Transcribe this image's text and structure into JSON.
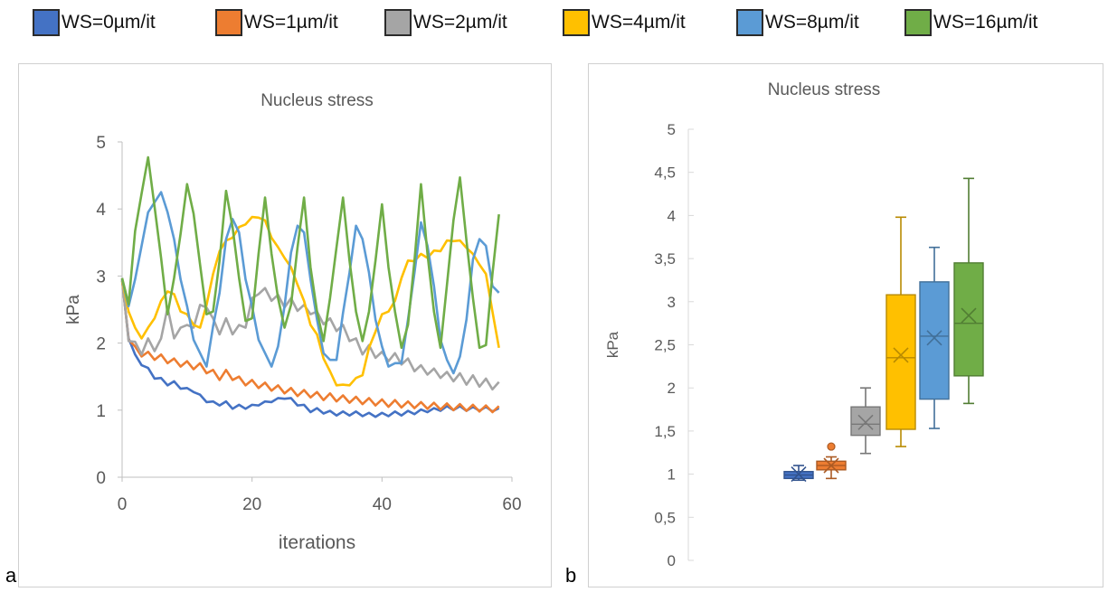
{
  "legend": [
    {
      "label": "WS=0µm/it",
      "color": "#4472C4"
    },
    {
      "label": "WS=1µm/it",
      "color": "#ED7D31"
    },
    {
      "label": "WS=2µm/it",
      "color": "#A5A5A5"
    },
    {
      "label": "WS=4µm/it",
      "color": "#FFC000"
    },
    {
      "label": "WS=8µm/it",
      "color": "#5B9BD5"
    },
    {
      "label": "WS=16µm/it",
      "color": "#70AD47"
    }
  ],
  "panel_labels": {
    "a": "a",
    "b": "b"
  },
  "chart_data": [
    {
      "type": "line",
      "title": "Nucleus stress",
      "xlabel": "iterations",
      "ylabel": "kPa",
      "xlim": [
        0,
        60
      ],
      "ylim": [
        0,
        5
      ],
      "xticks": [
        "0",
        "20",
        "40",
        "60"
      ],
      "yticks": [
        "0",
        "1",
        "2",
        "3",
        "4",
        "5"
      ],
      "grid": false,
      "x": [
        0,
        1,
        2,
        3,
        4,
        5,
        6,
        7,
        8,
        9,
        10,
        11,
        12,
        13,
        14,
        15,
        16,
        17,
        18,
        19,
        20,
        21,
        22,
        23,
        24,
        25,
        26,
        27,
        28,
        29,
        30,
        31,
        32,
        33,
        34,
        35,
        36,
        37,
        38,
        39,
        40,
        41,
        42,
        43,
        44,
        45,
        46,
        47,
        48,
        49,
        50,
        51,
        52,
        53,
        54,
        55,
        56,
        57,
        58
      ],
      "series": [
        {
          "color": "#4472C4",
          "values": [
            2.9,
            2.1,
            1.8,
            1.7,
            1.6,
            1.5,
            1.45,
            1.4,
            1.4,
            1.35,
            1.3,
            1.3,
            1.2,
            1.15,
            1.1,
            1.1,
            1.1,
            1.05,
            1.05,
            1.05,
            1.05,
            1.1,
            1.1,
            1.15,
            1.15,
            1.2,
            1.15,
            1.1,
            1.05,
            1.0,
            1.0,
            0.98,
            0.96,
            0.95,
            0.95,
            0.95,
            0.95,
            0.94,
            0.93,
            0.93,
            0.93,
            0.94,
            0.95,
            0.95,
            0.96,
            0.97,
            0.98,
            1.0,
            1.0,
            1.02,
            1.03,
            1.03,
            1.03,
            1.02,
            1.02,
            1.02,
            1.02,
            1.01,
            1.0
          ]
        },
        {
          "color": "#ED7D31",
          "values": [
            2.9,
            2.1,
            1.9,
            1.85,
            1.82,
            1.8,
            1.78,
            1.75,
            1.72,
            1.7,
            1.68,
            1.66,
            1.65,
            1.6,
            1.55,
            1.5,
            1.55,
            1.5,
            1.45,
            1.42,
            1.4,
            1.38,
            1.36,
            1.34,
            1.32,
            1.3,
            1.28,
            1.26,
            1.25,
            1.24,
            1.22,
            1.2,
            1.2,
            1.18,
            1.17,
            1.16,
            1.15,
            1.14,
            1.13,
            1.12,
            1.11,
            1.1,
            1.1,
            1.09,
            1.08,
            1.08,
            1.07,
            1.07,
            1.06,
            1.06,
            1.05,
            1.05,
            1.04,
            1.04,
            1.03,
            1.03,
            1.02,
            1.02,
            1.01
          ]
        },
        {
          "color": "#A5A5A5",
          "values": [
            2.9,
            2.1,
            1.95,
            1.9,
            2.0,
            1.95,
            2.0,
            2.6,
            2.0,
            2.3,
            2.2,
            2.3,
            2.5,
            2.6,
            2.3,
            2.2,
            2.3,
            2.2,
            2.2,
            2.3,
            2.6,
            2.8,
            2.75,
            2.7,
            2.65,
            2.6,
            2.6,
            2.55,
            2.5,
            2.5,
            2.4,
            2.35,
            2.3,
            2.25,
            2.2,
            2.1,
            2.0,
            1.9,
            1.9,
            1.85,
            1.8,
            1.8,
            1.78,
            1.75,
            1.7,
            1.65,
            1.6,
            1.6,
            1.55,
            1.55,
            1.5,
            1.5,
            1.48,
            1.45,
            1.45,
            1.42,
            1.4,
            1.38,
            1.35
          ]
        },
        {
          "color": "#FFC000",
          "values": [
            2.9,
            2.5,
            2.2,
            2.1,
            2.2,
            2.4,
            2.6,
            2.8,
            2.7,
            2.5,
            2.4,
            2.3,
            2.2,
            2.6,
            3.0,
            3.4,
            3.5,
            3.6,
            3.7,
            3.8,
            3.85,
            3.9,
            3.8,
            3.6,
            3.4,
            3.3,
            3.1,
            2.9,
            2.6,
            2.3,
            2.1,
            1.8,
            1.55,
            1.4,
            1.35,
            1.4,
            1.45,
            1.55,
            1.9,
            2.2,
            2.4,
            2.5,
            2.6,
            3.0,
            3.2,
            3.25,
            3.3,
            3.3,
            3.35,
            3.4,
            3.5,
            3.55,
            3.5,
            3.45,
            3.3,
            3.2,
            3.0,
            2.5,
            1.9
          ]
        },
        {
          "color": "#5B9BD5",
          "values": [
            2.9,
            2.6,
            2.9,
            3.5,
            3.9,
            4.15,
            4.2,
            4.0,
            3.5,
            3.0,
            2.5,
            2.1,
            1.8,
            1.7,
            2.2,
            2.8,
            3.5,
            3.9,
            3.6,
            3.0,
            2.5,
            2.1,
            1.8,
            1.7,
            1.9,
            2.6,
            3.3,
            3.8,
            3.6,
            3.0,
            2.3,
            1.9,
            1.7,
            1.8,
            2.4,
            3.1,
            3.7,
            3.6,
            3.0,
            2.4,
            1.9,
            1.7,
            1.65,
            1.75,
            2.3,
            3.1,
            3.75,
            3.5,
            2.8,
            2.1,
            1.7,
            1.6,
            1.75,
            2.4,
            3.2,
            3.6,
            3.4,
            2.9,
            2.7
          ]
        },
        {
          "color": "#70AD47",
          "values": [
            2.9,
            2.65,
            3.6,
            4.3,
            4.7,
            4.1,
            3.2,
            2.5,
            2.9,
            3.7,
            4.3,
            4.0,
            3.1,
            2.5,
            2.4,
            3.3,
            4.2,
            3.8,
            2.9,
            2.4,
            2.3,
            3.4,
            4.1,
            3.4,
            2.6,
            2.3,
            2.5,
            3.5,
            4.1,
            3.2,
            2.4,
            2.1,
            2.6,
            3.5,
            4.1,
            3.3,
            2.4,
            2.1,
            2.4,
            3.3,
            4.0,
            3.2,
            2.4,
            2.0,
            2.2,
            3.3,
            4.3,
            3.4,
            2.4,
            2.0,
            2.8,
            3.9,
            4.4,
            3.6,
            2.6,
            2.0,
            1.9,
            3.1,
            3.85
          ]
        }
      ]
    },
    {
      "type": "box",
      "title": "Nucleus stress",
      "ylabel": "kPa",
      "ylim": [
        0,
        5
      ],
      "yticks": [
        "0",
        "0,5",
        "1",
        "1,5",
        "2",
        "2,5",
        "3",
        "3,5",
        "4",
        "4,5",
        "5"
      ],
      "grid": false,
      "boxes": [
        {
          "color": "#4472C4",
          "min": 0.93,
          "q1": 0.95,
          "median": 0.99,
          "q3": 1.03,
          "max": 1.1,
          "mean": 1.0,
          "outliers": []
        },
        {
          "color": "#ED7D31",
          "min": 0.95,
          "q1": 1.05,
          "median": 1.1,
          "q3": 1.15,
          "max": 1.2,
          "mean": 1.1,
          "outliers": [
            1.32
          ]
        },
        {
          "color": "#A5A5A5",
          "min": 1.24,
          "q1": 1.45,
          "median": 1.58,
          "q3": 1.78,
          "max": 2.0,
          "mean": 1.6,
          "outliers": []
        },
        {
          "color": "#FFC000",
          "min": 1.32,
          "q1": 1.52,
          "median": 2.35,
          "q3": 3.08,
          "max": 3.98,
          "mean": 2.38,
          "outliers": []
        },
        {
          "color": "#5B9BD5",
          "min": 1.53,
          "q1": 1.87,
          "median": 2.6,
          "q3": 3.23,
          "max": 3.63,
          "mean": 2.58,
          "outliers": []
        },
        {
          "color": "#70AD47",
          "min": 1.82,
          "q1": 2.14,
          "median": 2.75,
          "q3": 3.45,
          "max": 4.43,
          "mean": 2.84,
          "outliers": []
        }
      ]
    }
  ]
}
